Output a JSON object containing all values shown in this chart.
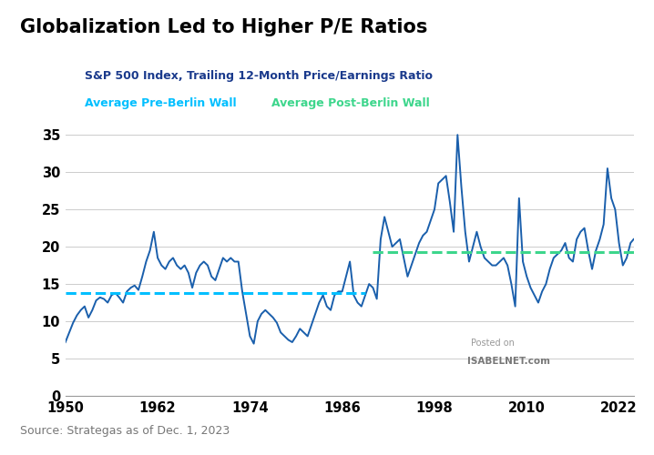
{
  "title": "Globalization Led to Higher P/E Ratios",
  "subtitle_line1": "S&P 500 Index, Trailing 12-Month Price/Earnings Ratio",
  "subtitle_line2_pre": "Average Pre-Berlin Wall",
  "subtitle_line2_post": "   Average Post-Berlin Wall",
  "subtitle_line1_color": "#1a3a8c",
  "subtitle_line2_pre_color": "#00bfff",
  "subtitle_line2_post_color": "#3dd68c",
  "source_text": "Source: Strategas as of Dec. 1, 2023",
  "watermark_line1": "Posted on",
  "watermark_line2": "ISABELNET.com",
  "pre_berlin_wall_avg": 13.8,
  "post_berlin_wall_avg": 19.3,
  "pre_berlin_wall_end_year": 1989,
  "post_berlin_wall_start_year": 1990,
  "xlim": [
    1950,
    2024
  ],
  "ylim": [
    0,
    36
  ],
  "yticks": [
    0,
    5,
    10,
    15,
    20,
    25,
    30,
    35
  ],
  "xticks": [
    1950,
    1962,
    1974,
    1986,
    1998,
    2010,
    2022
  ],
  "line_color": "#1a5fac",
  "line_width": 1.4,
  "pe_data": [
    [
      1950.0,
      7.2
    ],
    [
      1950.5,
      8.5
    ],
    [
      1951.0,
      9.8
    ],
    [
      1951.5,
      10.8
    ],
    [
      1952.0,
      11.5
    ],
    [
      1952.5,
      12.0
    ],
    [
      1953.0,
      10.5
    ],
    [
      1953.5,
      11.5
    ],
    [
      1954.0,
      12.8
    ],
    [
      1954.5,
      13.2
    ],
    [
      1955.0,
      13.0
    ],
    [
      1955.5,
      12.5
    ],
    [
      1956.0,
      13.5
    ],
    [
      1956.5,
      13.8
    ],
    [
      1957.0,
      13.2
    ],
    [
      1957.5,
      12.5
    ],
    [
      1958.0,
      14.0
    ],
    [
      1958.5,
      14.5
    ],
    [
      1959.0,
      14.8
    ],
    [
      1959.5,
      14.2
    ],
    [
      1960.0,
      16.0
    ],
    [
      1960.5,
      18.0
    ],
    [
      1961.0,
      19.5
    ],
    [
      1961.5,
      22.0
    ],
    [
      1962.0,
      18.5
    ],
    [
      1962.5,
      17.5
    ],
    [
      1963.0,
      17.0
    ],
    [
      1963.5,
      18.0
    ],
    [
      1964.0,
      18.5
    ],
    [
      1964.5,
      17.5
    ],
    [
      1965.0,
      17.0
    ],
    [
      1965.5,
      17.5
    ],
    [
      1966.0,
      16.5
    ],
    [
      1966.5,
      14.5
    ],
    [
      1967.0,
      16.5
    ],
    [
      1967.5,
      17.5
    ],
    [
      1968.0,
      18.0
    ],
    [
      1968.5,
      17.5
    ],
    [
      1969.0,
      16.0
    ],
    [
      1969.5,
      15.5
    ],
    [
      1970.0,
      17.0
    ],
    [
      1970.5,
      18.5
    ],
    [
      1971.0,
      18.0
    ],
    [
      1971.5,
      18.5
    ],
    [
      1972.0,
      18.0
    ],
    [
      1972.5,
      18.0
    ],
    [
      1973.0,
      14.0
    ],
    [
      1973.5,
      11.0
    ],
    [
      1974.0,
      8.0
    ],
    [
      1974.5,
      7.0
    ],
    [
      1975.0,
      10.0
    ],
    [
      1975.5,
      11.0
    ],
    [
      1976.0,
      11.5
    ],
    [
      1976.5,
      11.0
    ],
    [
      1977.0,
      10.5
    ],
    [
      1977.5,
      9.8
    ],
    [
      1978.0,
      8.5
    ],
    [
      1978.5,
      8.0
    ],
    [
      1979.0,
      7.5
    ],
    [
      1979.5,
      7.2
    ],
    [
      1980.0,
      8.0
    ],
    [
      1980.5,
      9.0
    ],
    [
      1981.0,
      8.5
    ],
    [
      1981.5,
      8.0
    ],
    [
      1982.0,
      9.5
    ],
    [
      1982.5,
      11.0
    ],
    [
      1983.0,
      12.5
    ],
    [
      1983.5,
      13.5
    ],
    [
      1984.0,
      12.0
    ],
    [
      1984.5,
      11.5
    ],
    [
      1985.0,
      13.5
    ],
    [
      1985.5,
      14.0
    ],
    [
      1986.0,
      14.0
    ],
    [
      1986.5,
      16.0
    ],
    [
      1987.0,
      18.0
    ],
    [
      1987.5,
      13.5
    ],
    [
      1988.0,
      12.5
    ],
    [
      1988.5,
      12.0
    ],
    [
      1989.0,
      13.5
    ],
    [
      1989.5,
      15.0
    ],
    [
      1990.0,
      14.5
    ],
    [
      1990.5,
      13.0
    ],
    [
      1991.0,
      21.0
    ],
    [
      1991.5,
      24.0
    ],
    [
      1992.0,
      22.0
    ],
    [
      1992.5,
      20.0
    ],
    [
      1993.0,
      20.5
    ],
    [
      1993.5,
      21.0
    ],
    [
      1994.0,
      18.5
    ],
    [
      1994.5,
      16.0
    ],
    [
      1995.0,
      17.5
    ],
    [
      1995.5,
      19.0
    ],
    [
      1996.0,
      20.5
    ],
    [
      1996.5,
      21.5
    ],
    [
      1997.0,
      22.0
    ],
    [
      1997.5,
      23.5
    ],
    [
      1998.0,
      25.0
    ],
    [
      1998.5,
      28.5
    ],
    [
      1999.0,
      29.0
    ],
    [
      1999.5,
      29.5
    ],
    [
      2000.0,
      26.0
    ],
    [
      2000.5,
      22.0
    ],
    [
      2001.0,
      35.0
    ],
    [
      2001.5,
      28.0
    ],
    [
      2002.0,
      22.0
    ],
    [
      2002.5,
      18.0
    ],
    [
      2003.0,
      20.0
    ],
    [
      2003.5,
      22.0
    ],
    [
      2004.0,
      20.0
    ],
    [
      2004.5,
      18.5
    ],
    [
      2005.0,
      18.0
    ],
    [
      2005.5,
      17.5
    ],
    [
      2006.0,
      17.5
    ],
    [
      2006.5,
      18.0
    ],
    [
      2007.0,
      18.5
    ],
    [
      2007.5,
      17.5
    ],
    [
      2008.0,
      15.0
    ],
    [
      2008.5,
      12.0
    ],
    [
      2009.0,
      26.5
    ],
    [
      2009.5,
      18.0
    ],
    [
      2010.0,
      16.0
    ],
    [
      2010.5,
      14.5
    ],
    [
      2011.0,
      13.5
    ],
    [
      2011.5,
      12.5
    ],
    [
      2012.0,
      14.0
    ],
    [
      2012.5,
      15.0
    ],
    [
      2013.0,
      17.0
    ],
    [
      2013.5,
      18.5
    ],
    [
      2014.0,
      19.0
    ],
    [
      2014.5,
      19.5
    ],
    [
      2015.0,
      20.5
    ],
    [
      2015.5,
      18.5
    ],
    [
      2016.0,
      18.0
    ],
    [
      2016.5,
      21.0
    ],
    [
      2017.0,
      22.0
    ],
    [
      2017.5,
      22.5
    ],
    [
      2018.0,
      19.5
    ],
    [
      2018.5,
      17.0
    ],
    [
      2019.0,
      19.5
    ],
    [
      2019.5,
      21.0
    ],
    [
      2020.0,
      23.0
    ],
    [
      2020.5,
      30.5
    ],
    [
      2021.0,
      26.5
    ],
    [
      2021.5,
      25.0
    ],
    [
      2022.0,
      20.5
    ],
    [
      2022.5,
      17.5
    ],
    [
      2023.0,
      18.5
    ],
    [
      2023.5,
      20.5
    ],
    [
      2023.9,
      21.0
    ]
  ]
}
